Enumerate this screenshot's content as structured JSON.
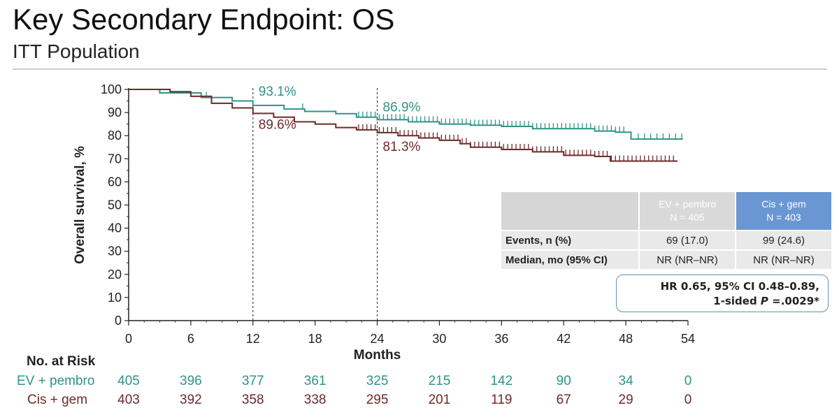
{
  "slide": {
    "title": "Key Secondary Endpoint: OS",
    "subtitle": "ITT Population"
  },
  "chart_data": {
    "type": "line",
    "step": true,
    "xlabel": "Months",
    "ylabel": "Overall survival, %",
    "xlim": [
      0,
      54
    ],
    "ylim": [
      0,
      100
    ],
    "xticks": [
      0,
      6,
      12,
      18,
      24,
      30,
      36,
      42,
      48,
      54
    ],
    "yticks": [
      0,
      10,
      20,
      30,
      40,
      50,
      60,
      70,
      80,
      90,
      100
    ],
    "reference_lines_x": [
      12,
      24
    ],
    "series": [
      {
        "name": "EV + pembro",
        "color": "#2e9485",
        "x": [
          0,
          3,
          7,
          10,
          12,
          15,
          17,
          20,
          22,
          24,
          27,
          30,
          33,
          36,
          39,
          42,
          45,
          47,
          48.5,
          53.5
        ],
        "y": [
          100,
          98.5,
          96.5,
          95,
          93.1,
          91.5,
          90.5,
          89.5,
          88,
          86.9,
          86,
          85,
          84.5,
          84,
          83,
          83,
          82,
          81.5,
          78.5,
          78.5
        ],
        "censor_x": [
          7.5,
          16.8,
          22.2,
          22.6,
          23,
          23.4,
          23.8,
          24.2,
          24.6,
          25,
          25.4,
          25.8,
          26.2,
          26.6,
          27,
          27.4,
          27.8,
          28.2,
          28.6,
          29,
          29.4,
          29.8,
          30.2,
          30.6,
          31,
          31.4,
          31.8,
          32.2,
          32.6,
          33,
          33.4,
          33.8,
          34.2,
          34.6,
          35,
          35.4,
          35.8,
          36.2,
          36.6,
          37,
          37.4,
          37.8,
          38.2,
          38.6,
          39,
          39.4,
          39.8,
          40.2,
          40.6,
          41,
          41.4,
          41.8,
          42.2,
          42.6,
          43,
          43.4,
          43.8,
          44.2,
          44.6,
          45,
          45.4,
          45.8,
          46.2,
          46.6,
          47,
          47.4,
          47.8,
          49.2,
          49.8,
          50.4,
          51,
          51.6,
          52.2,
          52.8,
          53.4
        ]
      },
      {
        "name": "Cis + gem",
        "color": "#6d2a2a",
        "x": [
          0,
          4,
          6,
          8,
          10,
          12,
          14,
          16,
          18,
          20,
          22,
          24,
          26,
          28,
          30,
          32,
          33,
          36,
          39,
          42,
          45,
          46.5,
          53
        ],
        "y": [
          100,
          99,
          97,
          94,
          92,
          89.6,
          88,
          86,
          85,
          83.5,
          82.5,
          81.3,
          80,
          79,
          78,
          76.5,
          75,
          74,
          73,
          71.5,
          71,
          69,
          69
        ],
        "censor_x": [
          22.2,
          22.6,
          23,
          23.4,
          23.8,
          24.2,
          24.6,
          25,
          25.4,
          25.8,
          26.2,
          26.6,
          27,
          27.4,
          27.8,
          28.2,
          28.6,
          29,
          29.4,
          29.8,
          30.2,
          30.6,
          31,
          31.4,
          31.8,
          32.2,
          32.6,
          33,
          33.4,
          33.8,
          34.2,
          34.6,
          35,
          35.4,
          35.8,
          36.2,
          36.6,
          37,
          37.4,
          37.8,
          38.2,
          38.6,
          39,
          39.4,
          39.8,
          40.2,
          40.6,
          41,
          41.4,
          41.8,
          42.2,
          42.6,
          43,
          43.4,
          43.8,
          44.2,
          44.6,
          45,
          45.4,
          45.8,
          46.2,
          46.6,
          47,
          47.4,
          47.8,
          48.2,
          48.6,
          49,
          49.4,
          49.8,
          50.2,
          50.6,
          51,
          51.4,
          51.8,
          52.2,
          52.6
        ]
      }
    ],
    "annotations": [
      {
        "text": "93.1%",
        "x": 12,
        "y": 93.1,
        "series": 0
      },
      {
        "text": "89.6%",
        "x": 12,
        "y": 89.6,
        "series": 1
      },
      {
        "text": "86.9%",
        "x": 24,
        "y": 86.9,
        "series": 0
      },
      {
        "text": "81.3%",
        "x": 24,
        "y": 81.3,
        "series": 1
      }
    ]
  },
  "summary_table": {
    "columns": [
      {
        "name": "EV + pembro",
        "n": "N = 405"
      },
      {
        "name": "Cis + gem",
        "n": "N = 403"
      }
    ],
    "rows": [
      {
        "label": "Events, n (%)",
        "values": [
          "69 (17.0)",
          "99 (24.6)"
        ]
      },
      {
        "label": "Median, mo (95% CI)",
        "values": [
          "NR (NR–NR)",
          "NR (NR–NR)"
        ]
      }
    ]
  },
  "hr_box": {
    "line1": "HR 0.65, 95% CI 0.48–0.89,",
    "line2_prefix": "1-sided ",
    "line2_italic": "P",
    "line2_suffix": " =.0029*"
  },
  "risk_table": {
    "title": "No. at Risk",
    "months": [
      0,
      6,
      12,
      18,
      24,
      30,
      36,
      42,
      48,
      54
    ],
    "rows": [
      {
        "label": "EV + pembro",
        "values": [
          "405",
          "396",
          "377",
          "361",
          "325",
          "215",
          "142",
          "90",
          "34",
          "0"
        ]
      },
      {
        "label": "Cis + gem",
        "values": [
          "403",
          "392",
          "358",
          "338",
          "295",
          "201",
          "119",
          "67",
          "29",
          "0"
        ]
      }
    ]
  }
}
